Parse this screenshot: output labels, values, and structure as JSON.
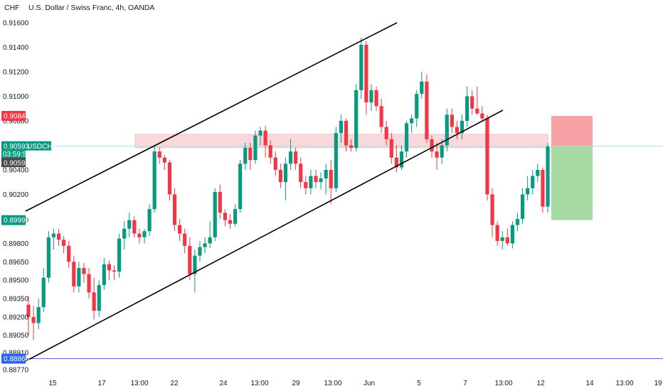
{
  "header": {
    "currency_label": "CHF",
    "title": "U.S. Dollar / Swiss Franc, 4h, OANDA"
  },
  "colors": {
    "up": "#089981",
    "down": "#f23645",
    "zone": "#f7c9cc",
    "stop_zone": "#f7a1a7",
    "target_zone": "#a5d9a1",
    "trendline": "#000000",
    "price_line": "#b2dfdb",
    "low_line": "#5b62e0"
  },
  "price_tags": {
    "stop": {
      "value": "0.90840"
    },
    "current": {
      "value": "0.90593",
      "symbol": "USDCHF",
      "countdown": "03:59:58"
    },
    "entry": {
      "value": "0.90590"
    },
    "target": {
      "value": "0.89990"
    },
    "low": {
      "value": "0.88860"
    }
  },
  "chart_data": {
    "type": "candlestick",
    "title": "U.S. Dollar / Swiss Franc, 4h, OANDA",
    "ylabel": "CHF",
    "ylim": [
      0.8871,
      0.9169
    ],
    "y_ticks": [
      "0.91600",
      "0.91400",
      "0.91200",
      "0.91000",
      "0.90800",
      "0.90590",
      "0.90400",
      "0.90200",
      "0.89990",
      "0.89800",
      "0.89650",
      "0.89500",
      "0.89350",
      "0.89200",
      "0.89050",
      "0.88910",
      "0.88770"
    ],
    "x_ticks": [
      "15",
      "17",
      "13:00",
      "22",
      "24",
      "13:00",
      "29",
      "13:00",
      "Jun",
      "5",
      "7",
      "13:00",
      "12",
      "14",
      "13:00",
      "19"
    ],
    "candles": [
      [
        0.893,
        0.8937,
        0.8905,
        0.892
      ],
      [
        0.892,
        0.8929,
        0.8901,
        0.8915
      ],
      [
        0.8915,
        0.8935,
        0.891,
        0.8928
      ],
      [
        0.8928,
        0.896,
        0.8924,
        0.8952
      ],
      [
        0.8952,
        0.899,
        0.8948,
        0.8985
      ],
      [
        0.8985,
        0.8992,
        0.8975,
        0.8988
      ],
      [
        0.8988,
        0.8992,
        0.8978,
        0.8983
      ],
      [
        0.8983,
        0.8986,
        0.8972,
        0.8978
      ],
      [
        0.8978,
        0.8982,
        0.896,
        0.8965
      ],
      [
        0.8965,
        0.897,
        0.894,
        0.8945
      ],
      [
        0.8945,
        0.8965,
        0.894,
        0.896
      ],
      [
        0.896,
        0.8964,
        0.8948,
        0.8955
      ],
      [
        0.8955,
        0.896,
        0.8935,
        0.894
      ],
      [
        0.894,
        0.8952,
        0.8918,
        0.8925
      ],
      [
        0.8925,
        0.895,
        0.892,
        0.8946
      ],
      [
        0.8946,
        0.8968,
        0.8942,
        0.8963
      ],
      [
        0.8963,
        0.8966,
        0.895,
        0.8958
      ],
      [
        0.8958,
        0.8962,
        0.895,
        0.8957
      ],
      [
        0.8957,
        0.8988,
        0.8952,
        0.8984
      ],
      [
        0.8984,
        0.8998,
        0.8975,
        0.8992
      ],
      [
        0.8992,
        0.9005,
        0.8985,
        0.8999
      ],
      [
        0.8999,
        0.9002,
        0.8985,
        0.8988
      ],
      [
        0.8988,
        0.8992,
        0.898,
        0.8985
      ],
      [
        0.8985,
        0.8992,
        0.898,
        0.899
      ],
      [
        0.899,
        0.9012,
        0.8986,
        0.9008
      ],
      [
        0.9008,
        0.906,
        0.9005,
        0.9055
      ],
      [
        0.9055,
        0.9058,
        0.9045,
        0.905
      ],
      [
        0.905,
        0.9052,
        0.904,
        0.9046
      ],
      [
        0.9046,
        0.9048,
        0.9015,
        0.902
      ],
      [
        0.902,
        0.9025,
        0.899,
        0.8995
      ],
      [
        0.8995,
        0.9,
        0.8982,
        0.8988
      ],
      [
        0.8988,
        0.8992,
        0.8972,
        0.8978
      ],
      [
        0.8978,
        0.8985,
        0.895,
        0.8955
      ],
      [
        0.8955,
        0.8975,
        0.894,
        0.897
      ],
      [
        0.897,
        0.8982,
        0.8965,
        0.8977
      ],
      [
        0.8977,
        0.8985,
        0.8972,
        0.898
      ],
      [
        0.898,
        0.8998,
        0.8976,
        0.8985
      ],
      [
        0.8985,
        0.9025,
        0.8982,
        0.9022
      ],
      [
        0.9022,
        0.9028,
        0.9,
        0.9005
      ],
      [
        0.9005,
        0.9008,
        0.8994,
        0.8999
      ],
      [
        0.8999,
        0.9004,
        0.8992,
        0.8996
      ],
      [
        0.8996,
        0.9012,
        0.8994,
        0.9008
      ],
      [
        0.9008,
        0.9048,
        0.9005,
        0.9045
      ],
      [
        0.9045,
        0.9062,
        0.904,
        0.9058
      ],
      [
        0.9058,
        0.9062,
        0.904,
        0.9048
      ],
      [
        0.9048,
        0.9072,
        0.9045,
        0.9068
      ],
      [
        0.9068,
        0.9075,
        0.906,
        0.9072
      ],
      [
        0.9072,
        0.9076,
        0.905,
        0.906
      ],
      [
        0.906,
        0.9064,
        0.9045,
        0.905
      ],
      [
        0.905,
        0.9055,
        0.9035,
        0.904
      ],
      [
        0.904,
        0.9045,
        0.9025,
        0.903
      ],
      [
        0.903,
        0.905,
        0.9015,
        0.9045
      ],
      [
        0.9045,
        0.9065,
        0.904,
        0.9055
      ],
      [
        0.9055,
        0.9058,
        0.904,
        0.9045
      ],
      [
        0.9045,
        0.905,
        0.9025,
        0.903
      ],
      [
        0.903,
        0.9035,
        0.902,
        0.9025
      ],
      [
        0.9025,
        0.904,
        0.902,
        0.9035
      ],
      [
        0.9035,
        0.904,
        0.9025,
        0.903
      ],
      [
        0.903,
        0.9038,
        0.9024,
        0.9033
      ],
      [
        0.9033,
        0.9045,
        0.902,
        0.904
      ],
      [
        0.904,
        0.9048,
        0.9012,
        0.9025
      ],
      [
        0.9025,
        0.9075,
        0.9022,
        0.907
      ],
      [
        0.907,
        0.9085,
        0.9062,
        0.908
      ],
      [
        0.908,
        0.9082,
        0.9055,
        0.906
      ],
      [
        0.906,
        0.9065,
        0.9055,
        0.9058
      ],
      [
        0.9058,
        0.911,
        0.9055,
        0.9105
      ],
      [
        0.9105,
        0.9148,
        0.9098,
        0.9142
      ],
      [
        0.9142,
        0.9145,
        0.9085,
        0.9095
      ],
      [
        0.9095,
        0.911,
        0.9088,
        0.9105
      ],
      [
        0.9105,
        0.9108,
        0.9088,
        0.9092
      ],
      [
        0.9092,
        0.9098,
        0.907,
        0.9075
      ],
      [
        0.9075,
        0.908,
        0.906,
        0.9065
      ],
      [
        0.9065,
        0.907,
        0.9045,
        0.905
      ],
      [
        0.905,
        0.906,
        0.9038,
        0.9042
      ],
      [
        0.9042,
        0.906,
        0.904,
        0.9055
      ],
      [
        0.9055,
        0.908,
        0.905,
        0.9078
      ],
      [
        0.9078,
        0.9085,
        0.907,
        0.9082
      ],
      [
        0.9082,
        0.9105,
        0.9075,
        0.9102
      ],
      [
        0.9102,
        0.912,
        0.9098,
        0.9112
      ],
      [
        0.9112,
        0.9118,
        0.9062,
        0.9065
      ],
      [
        0.9065,
        0.9068,
        0.905,
        0.9055
      ],
      [
        0.9055,
        0.9062,
        0.904,
        0.905
      ],
      [
        0.905,
        0.9065,
        0.9045,
        0.906
      ],
      [
        0.906,
        0.909,
        0.9055,
        0.9085
      ],
      [
        0.9085,
        0.909,
        0.907,
        0.9075
      ],
      [
        0.9075,
        0.908,
        0.9065,
        0.907
      ],
      [
        0.907,
        0.9085,
        0.9065,
        0.908
      ],
      [
        0.908,
        0.9108,
        0.9075,
        0.91
      ],
      [
        0.91,
        0.9105,
        0.9085,
        0.909
      ],
      [
        0.909,
        0.9108,
        0.9085,
        0.9086
      ],
      [
        0.9086,
        0.9092,
        0.908,
        0.9082
      ],
      [
        0.9082,
        0.9085,
        0.9015,
        0.902
      ],
      [
        0.902,
        0.9025,
        0.8985,
        0.8995
      ],
      [
        0.8995,
        0.8998,
        0.8978,
        0.8982
      ],
      [
        0.8982,
        0.899,
        0.8975,
        0.8985
      ],
      [
        0.8985,
        0.8992,
        0.8978,
        0.898
      ],
      [
        0.898,
        0.8998,
        0.8976,
        0.8995
      ],
      [
        0.8995,
        0.9005,
        0.899,
        0.9
      ],
      [
        0.9,
        0.9025,
        0.8996,
        0.902
      ],
      [
        0.902,
        0.9035,
        0.9015,
        0.9025
      ],
      [
        0.9025,
        0.904,
        0.902,
        0.9035
      ],
      [
        0.9035,
        0.9045,
        0.903,
        0.904
      ],
      [
        0.904,
        0.9042,
        0.9005,
        0.901
      ],
      [
        0.901,
        0.9062,
        0.9005,
        0.9059
      ]
    ],
    "support_resistance_zone": [
      0.9058,
      0.9069
    ],
    "risk_box": {
      "stop": 0.9084,
      "entry": 0.9059,
      "target": 0.8999
    },
    "current_price": 0.90593,
    "low_line": 0.8886
  }
}
